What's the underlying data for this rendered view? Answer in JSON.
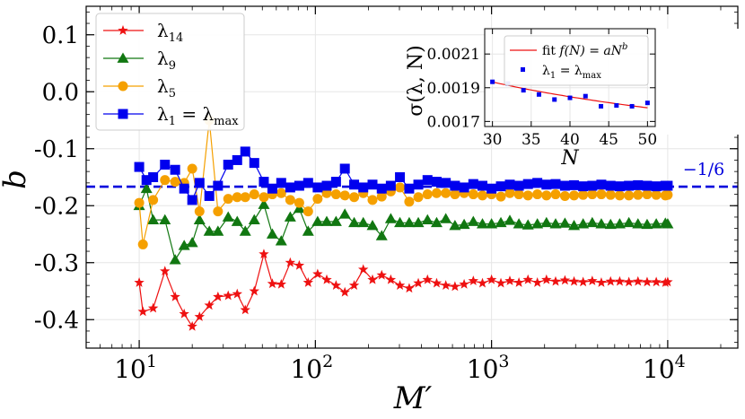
{
  "chart_data": [
    {
      "type": "line",
      "xscale": "log",
      "xlabel": "M′",
      "ylabel": "b",
      "xlim": [
        5,
        25000
      ],
      "ylim": [
        -0.45,
        0.15
      ],
      "yticks": [
        "0.1",
        "0.0",
        "-0.1",
        "-0.2",
        "-0.3",
        "-0.4"
      ],
      "yticks_values": [
        0.1,
        0.0,
        -0.1,
        -0.2,
        -0.3,
        -0.4
      ],
      "xticks": [
        {
          "base": "10",
          "exp": "1",
          "value": 10
        },
        {
          "base": "10",
          "exp": "2",
          "value": 100
        },
        {
          "base": "10",
          "exp": "3",
          "value": 1000
        },
        {
          "base": "10",
          "exp": "4",
          "value": 10000
        }
      ],
      "reference_line": {
        "value": -0.1667,
        "label": "−1/6",
        "color": "#0000dd"
      },
      "series": [
        {
          "name": "λ14",
          "sym": "λ",
          "sub": "14",
          "color": "#ee1111",
          "marker": "star",
          "x": [
            10,
            10.5,
            12,
            14,
            16,
            18,
            20,
            22,
            25,
            28,
            32,
            36,
            40,
            45,
            51,
            57,
            64,
            72,
            81,
            91,
            103,
            116,
            131,
            147,
            166,
            187,
            211,
            238,
            268,
            302,
            341,
            384,
            433,
            488,
            550,
            620,
            699,
            788,
            888,
            1000,
            1130,
            1270,
            1430,
            1610,
            1820,
            2050,
            2310,
            2610,
            2940,
            3310,
            3730,
            4200,
            4740,
            5340,
            6020,
            6780,
            7640,
            8610,
            9700,
            10000
          ],
          "y": [
            -0.335,
            -0.386,
            -0.38,
            -0.315,
            -0.36,
            -0.39,
            -0.412,
            -0.395,
            -0.375,
            -0.36,
            -0.358,
            -0.355,
            -0.383,
            -0.35,
            -0.285,
            -0.337,
            -0.338,
            -0.3,
            -0.305,
            -0.335,
            -0.32,
            -0.33,
            -0.34,
            -0.352,
            -0.34,
            -0.312,
            -0.33,
            -0.322,
            -0.33,
            -0.34,
            -0.345,
            -0.336,
            -0.33,
            -0.336,
            -0.34,
            -0.342,
            -0.338,
            -0.332,
            -0.336,
            -0.33,
            -0.336,
            -0.332,
            -0.335,
            -0.33,
            -0.335,
            -0.33,
            -0.333,
            -0.331,
            -0.333,
            -0.334,
            -0.332,
            -0.335,
            -0.333,
            -0.333,
            -0.334,
            -0.333,
            -0.334,
            -0.334,
            -0.335,
            -0.334
          ]
        },
        {
          "name": "λ9",
          "sym": "λ",
          "sub": "9",
          "color": "#117711",
          "marker": "triangle",
          "x": [
            10,
            11,
            12,
            14,
            16,
            18,
            20,
            22,
            25,
            28,
            32,
            36,
            40,
            45,
            51,
            57,
            64,
            72,
            81,
            91,
            103,
            116,
            131,
            147,
            166,
            187,
            211,
            238,
            268,
            302,
            341,
            384,
            433,
            488,
            550,
            620,
            699,
            788,
            888,
            1000,
            1130,
            1270,
            1430,
            1610,
            1820,
            2050,
            2310,
            2610,
            2940,
            3310,
            3730,
            4200,
            4740,
            5340,
            6020,
            6780,
            7640,
            8610,
            9700,
            10000
          ],
          "y": [
            -0.2,
            -0.17,
            -0.225,
            -0.225,
            -0.295,
            -0.27,
            -0.265,
            -0.225,
            -0.245,
            -0.245,
            -0.22,
            -0.228,
            -0.245,
            -0.225,
            -0.198,
            -0.25,
            -0.262,
            -0.22,
            -0.205,
            -0.245,
            -0.228,
            -0.228,
            -0.228,
            -0.215,
            -0.23,
            -0.23,
            -0.235,
            -0.253,
            -0.223,
            -0.23,
            -0.23,
            -0.23,
            -0.225,
            -0.23,
            -0.223,
            -0.235,
            -0.233,
            -0.228,
            -0.232,
            -0.232,
            -0.23,
            -0.226,
            -0.232,
            -0.234,
            -0.232,
            -0.23,
            -0.232,
            -0.231,
            -0.235,
            -0.232,
            -0.23,
            -0.232,
            -0.233,
            -0.232,
            -0.23,
            -0.232,
            -0.233,
            -0.232,
            -0.231,
            -0.232
          ]
        },
        {
          "name": "λ5",
          "sym": "λ",
          "sub": "5",
          "color": "#f5a000",
          "marker": "circle",
          "x": [
            10,
            10.5,
            12,
            14,
            16,
            18,
            20,
            22,
            25,
            28,
            32,
            36,
            40,
            45,
            51,
            57,
            64,
            72,
            81,
            91,
            103,
            116,
            131,
            147,
            166,
            187,
            211,
            238,
            268,
            302,
            341,
            384,
            433,
            488,
            550,
            620,
            699,
            788,
            888,
            1000,
            1130,
            1270,
            1430,
            1610,
            1820,
            2050,
            2310,
            2610,
            2940,
            3310,
            3730,
            4200,
            4740,
            5340,
            6020,
            6780,
            7640,
            8610,
            9700,
            10000
          ],
          "y": [
            -0.195,
            -0.268,
            -0.19,
            -0.155,
            -0.158,
            -0.16,
            -0.135,
            -0.21,
            -0.05,
            -0.21,
            -0.188,
            -0.185,
            -0.185,
            -0.18,
            -0.185,
            -0.18,
            -0.178,
            -0.19,
            -0.195,
            -0.21,
            -0.188,
            -0.178,
            -0.18,
            -0.182,
            -0.185,
            -0.178,
            -0.19,
            -0.184,
            -0.175,
            -0.168,
            -0.193,
            -0.185,
            -0.18,
            -0.178,
            -0.178,
            -0.18,
            -0.178,
            -0.18,
            -0.182,
            -0.18,
            -0.184,
            -0.178,
            -0.18,
            -0.182,
            -0.18,
            -0.182,
            -0.18,
            -0.183,
            -0.182,
            -0.181,
            -0.18,
            -0.18,
            -0.181,
            -0.182,
            -0.182,
            -0.181,
            -0.18,
            -0.181,
            -0.182,
            -0.181
          ]
        },
        {
          "name": "λ1 = λmax",
          "sym": "λ",
          "sub": "1",
          "eq": " = λ",
          "sub2": "max",
          "color": "#0000ee",
          "marker": "square",
          "x": [
            10,
            11,
            12,
            14,
            16,
            18,
            20,
            22,
            25,
            28,
            32,
            36,
            40,
            45,
            51,
            57,
            64,
            72,
            81,
            91,
            103,
            116,
            131,
            147,
            166,
            187,
            211,
            238,
            268,
            302,
            341,
            384,
            433,
            488,
            550,
            620,
            699,
            788,
            888,
            1000,
            1130,
            1270,
            1430,
            1610,
            1820,
            2050,
            2310,
            2610,
            2940,
            3310,
            3730,
            4200,
            4740,
            5340,
            6020,
            6780,
            7640,
            8610,
            9700,
            10000
          ],
          "y": [
            -0.132,
            -0.155,
            -0.15,
            -0.128,
            -0.137,
            -0.17,
            -0.19,
            -0.16,
            -0.183,
            -0.165,
            -0.128,
            -0.12,
            -0.105,
            -0.125,
            -0.158,
            -0.17,
            -0.16,
            -0.168,
            -0.165,
            -0.16,
            -0.168,
            -0.165,
            -0.158,
            -0.135,
            -0.163,
            -0.168,
            -0.163,
            -0.17,
            -0.165,
            -0.15,
            -0.17,
            -0.163,
            -0.155,
            -0.158,
            -0.16,
            -0.165,
            -0.168,
            -0.162,
            -0.165,
            -0.17,
            -0.166,
            -0.163,
            -0.165,
            -0.162,
            -0.16,
            -0.163,
            -0.162,
            -0.165,
            -0.164,
            -0.166,
            -0.165,
            -0.163,
            -0.165,
            -0.166,
            -0.165,
            -0.164,
            -0.165,
            -0.166,
            -0.165,
            -0.165
          ]
        }
      ]
    },
    {
      "type": "scatter",
      "role": "inset",
      "xlabel": "N",
      "ylabel": "σ(λ, N)",
      "xlim": [
        29,
        51
      ],
      "ylim": [
        0.00167,
        0.00225
      ],
      "xticks": [
        "30",
        "35",
        "40",
        "45",
        "50"
      ],
      "xticks_values": [
        30,
        35,
        40,
        45,
        50
      ],
      "yticks": [
        "0.0021",
        "0.0019",
        "0.0017"
      ],
      "yticks_values": [
        0.0021,
        0.0019,
        0.0017
      ],
      "legend": {
        "fit_label": "fit",
        "fit_formula": "f(N) = aN",
        "fit_exp": "b",
        "points_label_sym": "λ",
        "points_label_sub": "1",
        "points_label_eq": " = λ",
        "points_label_sub2": "max"
      },
      "points": {
        "name": "λ1 = λmax",
        "color": "#0000ee",
        "x": [
          30,
          32,
          34,
          36,
          38,
          40,
          42,
          44,
          46,
          48,
          50
        ],
        "y": [
          0.001935,
          0.001925,
          0.001885,
          0.00186,
          0.00183,
          0.00184,
          0.00185,
          0.00179,
          0.001795,
          0.00179,
          0.00181
        ]
      },
      "fit": {
        "name": "fit f(N) = aN^b",
        "color": "#ee1111",
        "a": 0.00335,
        "b": -0.1615
      }
    }
  ]
}
